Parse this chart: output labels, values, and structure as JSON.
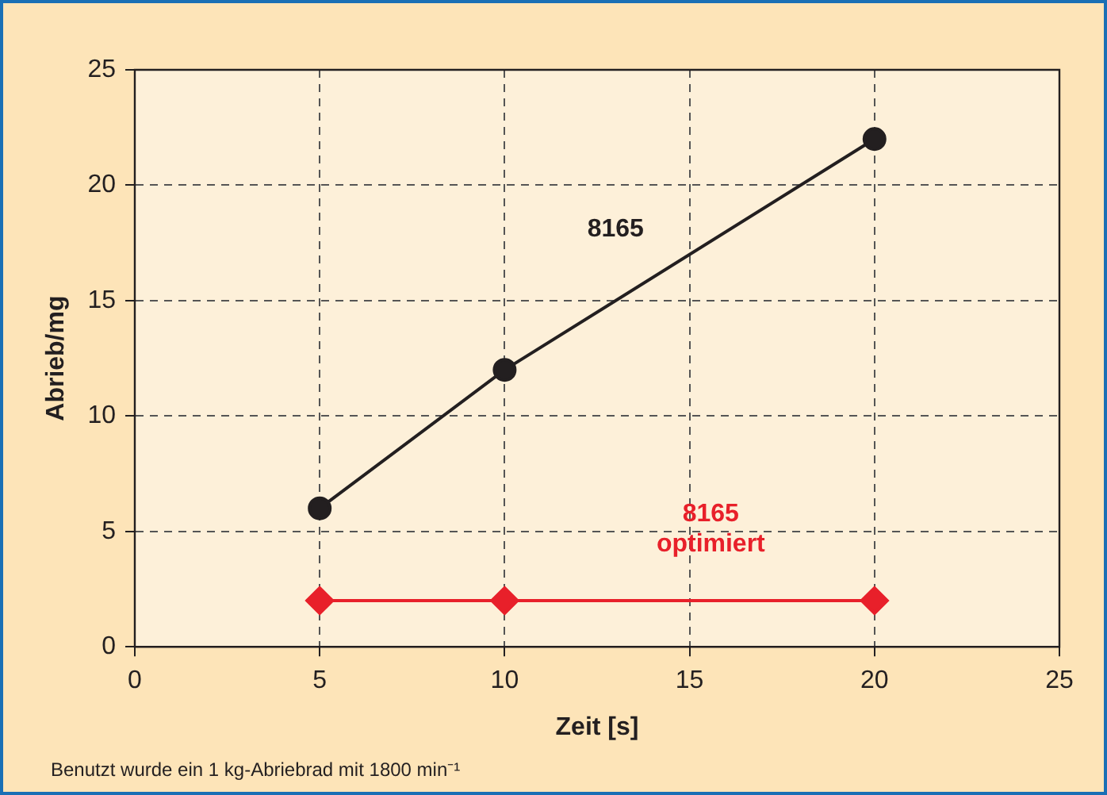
{
  "chart_data": {
    "type": "line",
    "xlabel": "Zeit [s]",
    "ylabel": "Abrieb/mg",
    "x": [
      5,
      10,
      20
    ],
    "series": [
      {
        "name": "8165",
        "color": "#231f20",
        "values": [
          6,
          12,
          22
        ],
        "marker": "circle"
      },
      {
        "name": "8165 optimiert",
        "color": "#e8202a",
        "values": [
          2,
          2,
          2
        ],
        "marker": "diamond"
      }
    ],
    "xlim": [
      0,
      25
    ],
    "xticks": [
      0,
      5,
      10,
      15,
      20,
      25
    ],
    "ylim": [
      0,
      25
    ],
    "yticks": [
      0,
      5,
      10,
      15,
      20,
      25
    ],
    "grid": true,
    "legend": false,
    "line_style": "solid",
    "annotations": [
      "Benutzt wurde ein 1 kg-Abriebrad mit 1800 min⁻¹"
    ]
  }
}
